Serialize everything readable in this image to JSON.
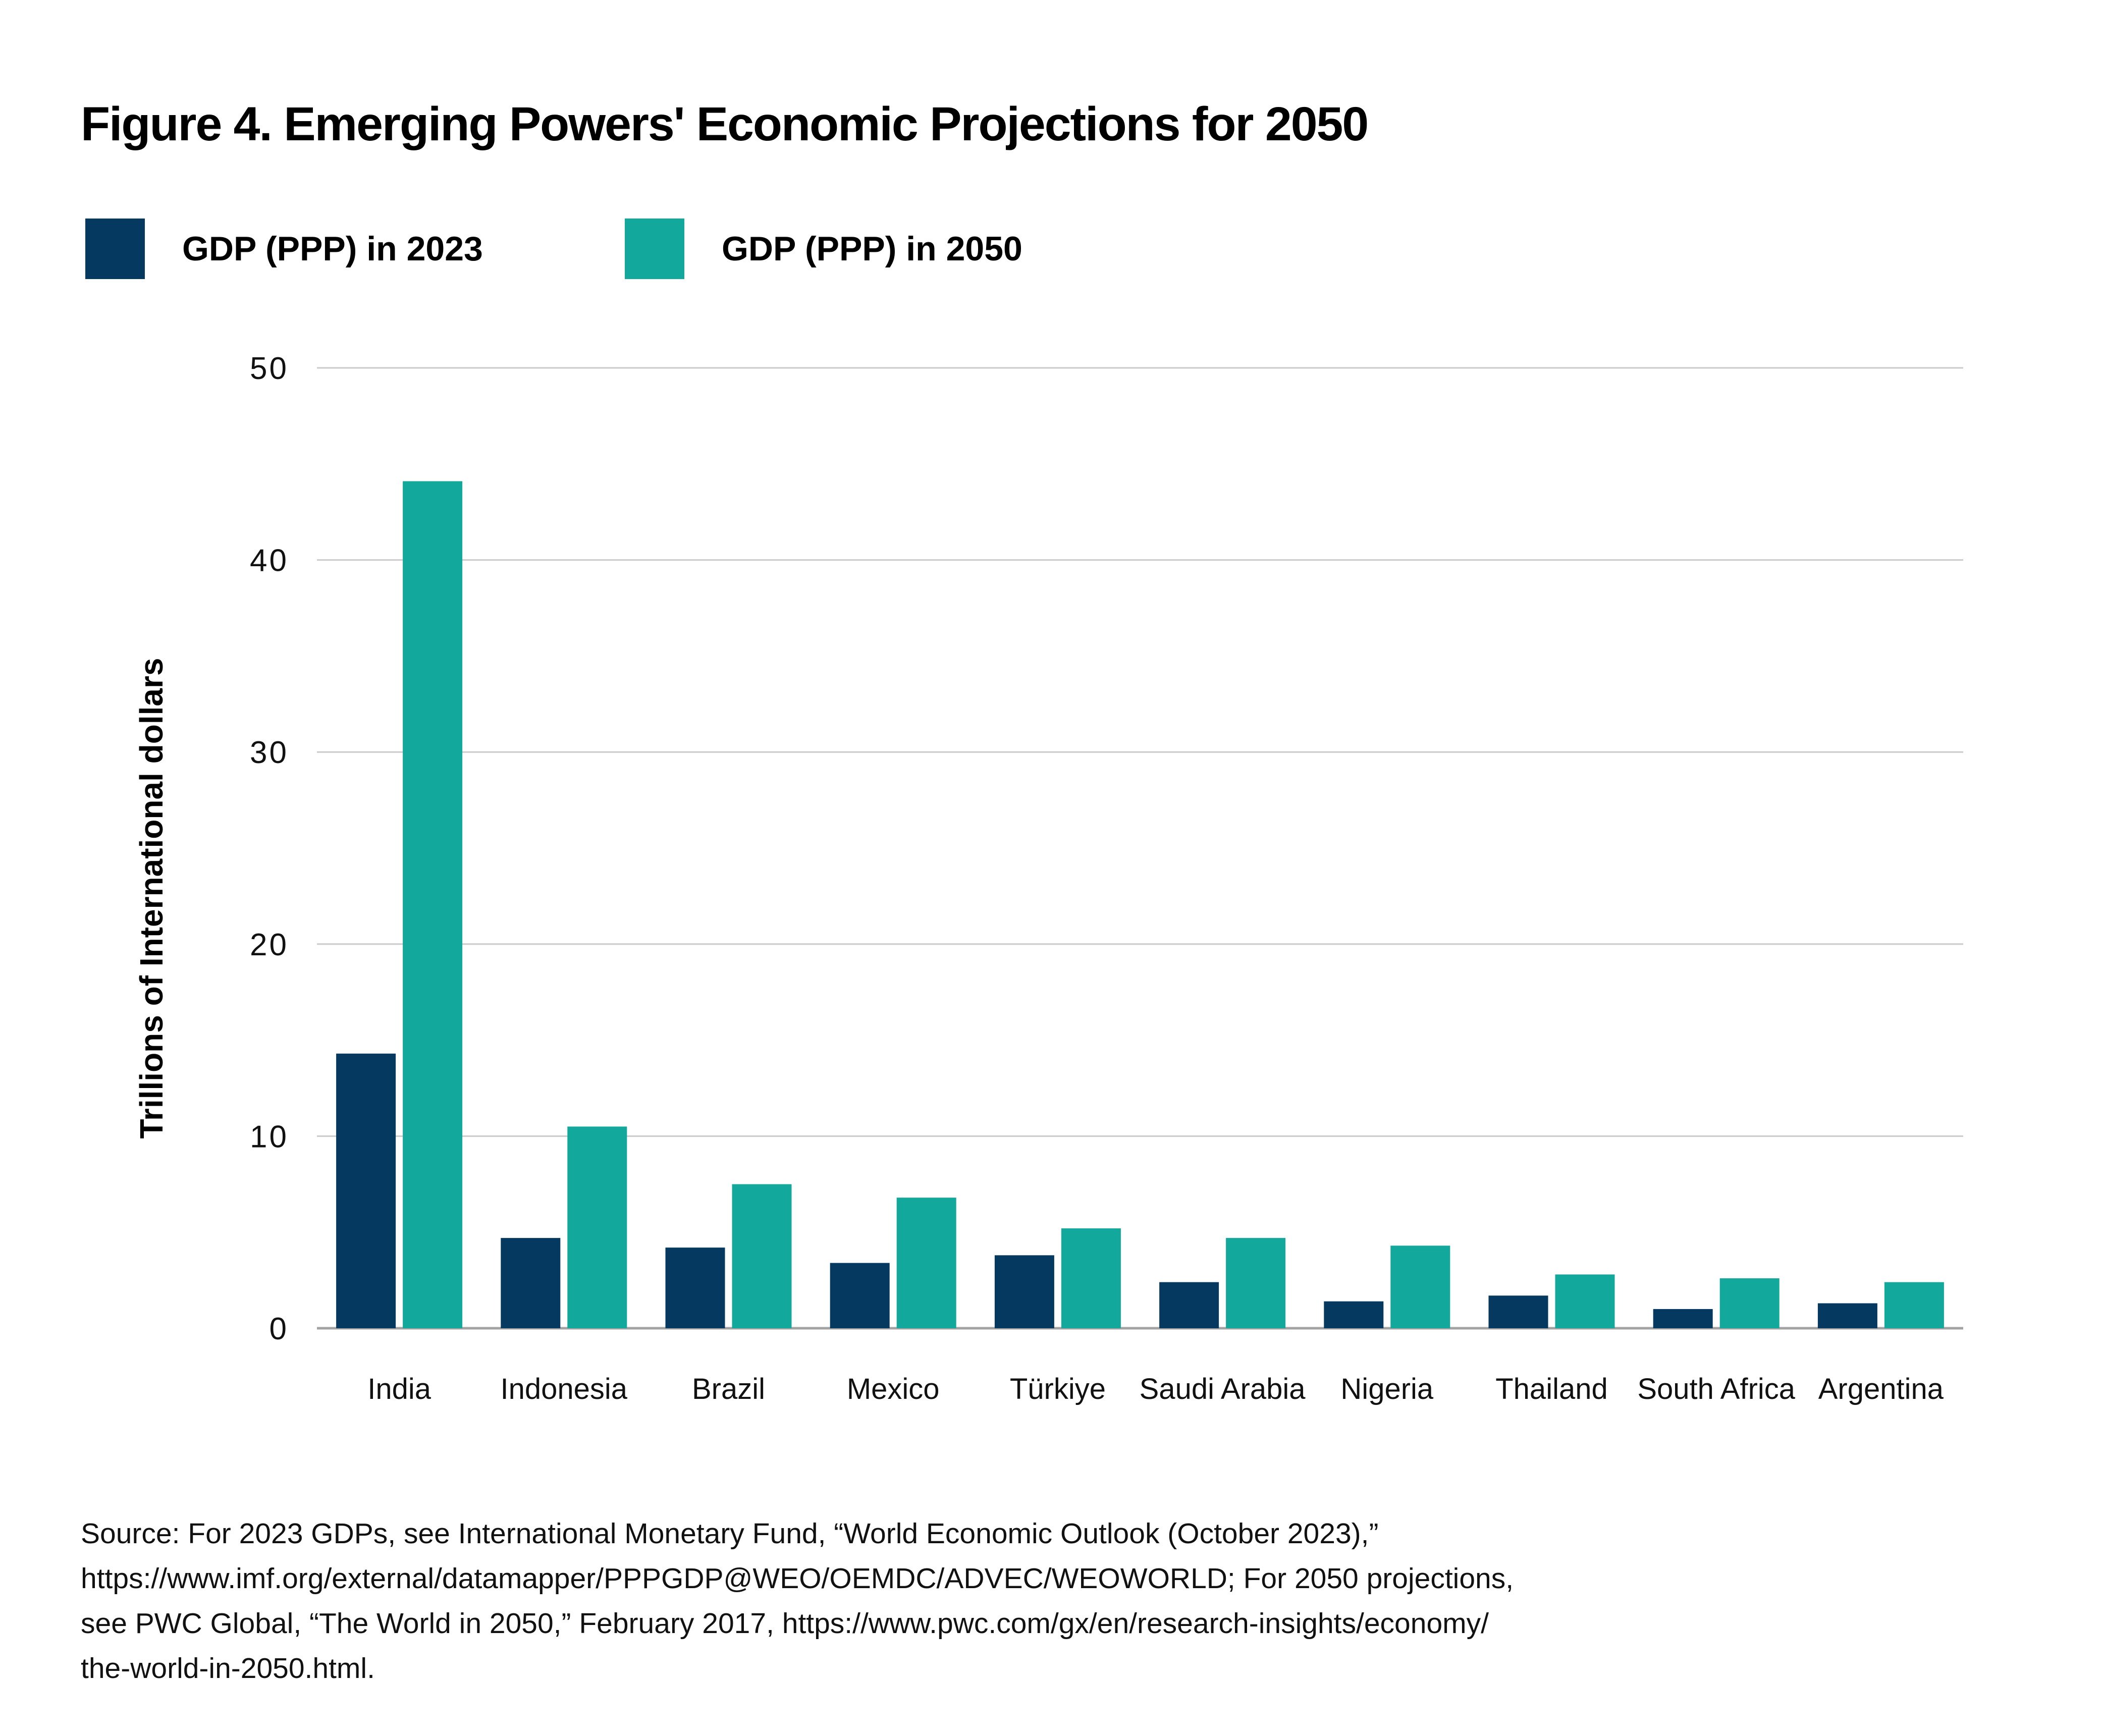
{
  "title": "Figure 4. Emerging Powers' Economic Projections for 2050",
  "legend": {
    "items": [
      {
        "label": "GDP (PPP) in 2023",
        "color": "#06395F"
      },
      {
        "label": "GDP (PPP) in 2050",
        "color": "#13A89C"
      }
    ]
  },
  "chart_data": {
    "type": "bar",
    "categories": [
      "India",
      "Indonesia",
      "Brazil",
      "Mexico",
      "Türkiye",
      "Saudi Arabia",
      "Nigeria",
      "Thailand",
      "South Africa",
      "Argentina"
    ],
    "series": [
      {
        "name": "GDP (PPP) in 2023",
        "color": "#06395F",
        "values": [
          14.3,
          4.7,
          4.2,
          3.4,
          3.8,
          2.4,
          1.4,
          1.7,
          1.0,
          1.3
        ]
      },
      {
        "name": "GDP (PPP) in 2050",
        "color": "#13A89C",
        "values": [
          44.1,
          10.5,
          7.5,
          6.8,
          5.2,
          4.7,
          4.3,
          2.8,
          2.6,
          2.4
        ]
      }
    ],
    "title": "Figure 4. Emerging Powers' Economic Projections for 2050",
    "xlabel": "",
    "ylabel": "Trillions of International dollars",
    "yticks": [
      0,
      10,
      20,
      30,
      40,
      50
    ],
    "ylim": [
      0,
      50
    ],
    "grid": true,
    "legend_position": "top-left"
  },
  "colors": {
    "gridline": "#CBCBCB",
    "axis_line": "#A3A3A3",
    "tick_text": "#111111"
  },
  "source_lines": [
    "Source: For 2023 GDPs, see International Monetary Fund, “World Economic Outlook (October 2023),”",
    "https://www.imf.org/external/datamapper/PPPGDP@WEO/OEMDC/ADVEC/WEOWORLD; For 2050 projections,",
    "see PWC Global, “The World in 2050,” February 2017, https://www.pwc.com/gx/en/research-insights/economy/",
    "the-world-in-2050.html."
  ]
}
